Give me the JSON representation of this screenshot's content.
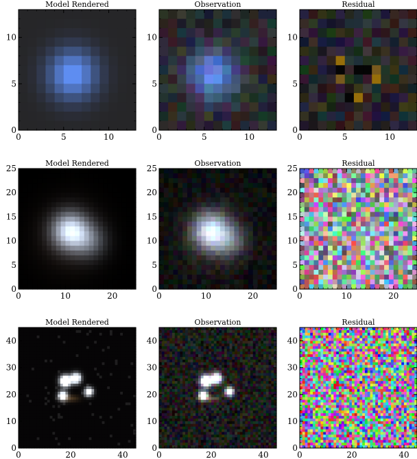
{
  "figure": {
    "background": "#ffffff",
    "panel_titles": [
      "Model Rendered",
      "Observation",
      "Residual"
    ]
  },
  "chart_data": [
    {
      "type": "heatmap",
      "row": 0,
      "col": 0,
      "title": "Model Rendered",
      "image_size": 13,
      "xlim": [
        0,
        13
      ],
      "ylim": [
        0,
        13
      ],
      "xticks": [
        0,
        5,
        10
      ],
      "yticks": [
        0,
        5,
        10
      ],
      "content": "rendered blue source at center"
    },
    {
      "type": "heatmap",
      "row": 0,
      "col": 1,
      "title": "Observation",
      "image_size": 13,
      "xlim": [
        0,
        13
      ],
      "ylim": [
        0,
        13
      ],
      "xticks": [
        0,
        5,
        10
      ],
      "yticks": [
        0,
        5,
        10
      ],
      "content": "noisy observation of blue source"
    },
    {
      "type": "heatmap",
      "row": 0,
      "col": 2,
      "title": "Residual",
      "image_size": 13,
      "xlim": [
        0,
        13
      ],
      "ylim": [
        0,
        13
      ],
      "xticks": [
        0,
        5,
        10
      ],
      "yticks": [
        0,
        5,
        10
      ],
      "content": "dark noisy residual with faint structure near center"
    },
    {
      "type": "heatmap",
      "row": 1,
      "col": 0,
      "title": "Model Rendered",
      "image_size": 25,
      "xlim": [
        0,
        25
      ],
      "ylim": [
        0,
        25
      ],
      "xticks": [
        0,
        10,
        20
      ],
      "yticks": [
        0,
        5,
        10,
        15,
        20,
        25
      ],
      "content": "bright white-blue source near (11,12)"
    },
    {
      "type": "heatmap",
      "row": 1,
      "col": 1,
      "title": "Observation",
      "image_size": 25,
      "xlim": [
        0,
        25
      ],
      "ylim": [
        0,
        25
      ],
      "xticks": [
        0,
        10,
        20
      ],
      "yticks": [
        0,
        5,
        10,
        15,
        20,
        25
      ],
      "content": "noisy observation of bright source"
    },
    {
      "type": "heatmap",
      "row": 1,
      "col": 2,
      "title": "Residual",
      "image_size": 25,
      "xlim": [
        0,
        25
      ],
      "ylim": [
        0,
        25
      ],
      "xticks": [
        0,
        10,
        20
      ],
      "yticks": [
        0,
        5,
        10,
        15,
        20,
        25
      ],
      "content": "colorful pastel noise residual"
    },
    {
      "type": "heatmap",
      "row": 2,
      "col": 0,
      "title": "Model Rendered",
      "image_size": 45,
      "xlim": [
        0,
        45
      ],
      "ylim": [
        0,
        45
      ],
      "xticks": [
        0,
        20,
        40
      ],
      "yticks": [
        0,
        10,
        20,
        30,
        40
      ],
      "content": "multiple point sources with faint arc"
    },
    {
      "type": "heatmap",
      "row": 2,
      "col": 1,
      "title": "Observation",
      "image_size": 45,
      "xlim": [
        0,
        45
      ],
      "ylim": [
        0,
        45
      ],
      "xticks": [
        0,
        20,
        40
      ],
      "yticks": [
        0,
        10,
        20,
        30,
        40
      ],
      "content": "noisy observation of multiple sources"
    },
    {
      "type": "heatmap",
      "row": 2,
      "col": 2,
      "title": "Residual",
      "image_size": 45,
      "xlim": [
        0,
        45
      ],
      "ylim": [
        0,
        45
      ],
      "xticks": [
        0,
        20,
        40
      ],
      "yticks": [
        0,
        10,
        20,
        30,
        40
      ],
      "content": "saturated colorful noise residual"
    }
  ]
}
